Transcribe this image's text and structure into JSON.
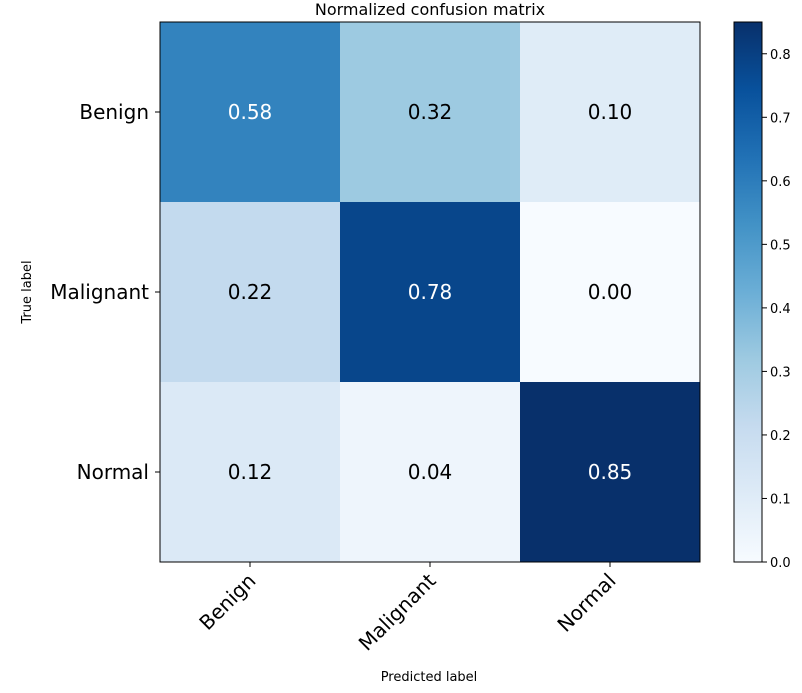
{
  "chart_data": {
    "type": "heatmap",
    "title": "Normalized confusion matrix",
    "xlabel": "Predicted label",
    "ylabel": "True label",
    "x_categories": [
      "Benign",
      "Malignant",
      "Normal"
    ],
    "y_categories": [
      "Benign",
      "Malignant",
      "Normal"
    ],
    "values": [
      [
        0.58,
        0.32,
        0.1
      ],
      [
        0.22,
        0.78,
        0.0
      ],
      [
        0.12,
        0.04,
        0.85
      ]
    ],
    "value_labels": [
      [
        "0.58",
        "0.32",
        "0.10"
      ],
      [
        "0.22",
        "0.78",
        "0.00"
      ],
      [
        "0.12",
        "0.04",
        "0.85"
      ]
    ],
    "colormap": "Blues",
    "colorbar": {
      "range": [
        0.0,
        0.85
      ],
      "ticks": [
        "0.0",
        "0.1",
        "0.2",
        "0.3",
        "0.4",
        "0.5",
        "0.6",
        "0.7",
        "0.8"
      ]
    }
  }
}
